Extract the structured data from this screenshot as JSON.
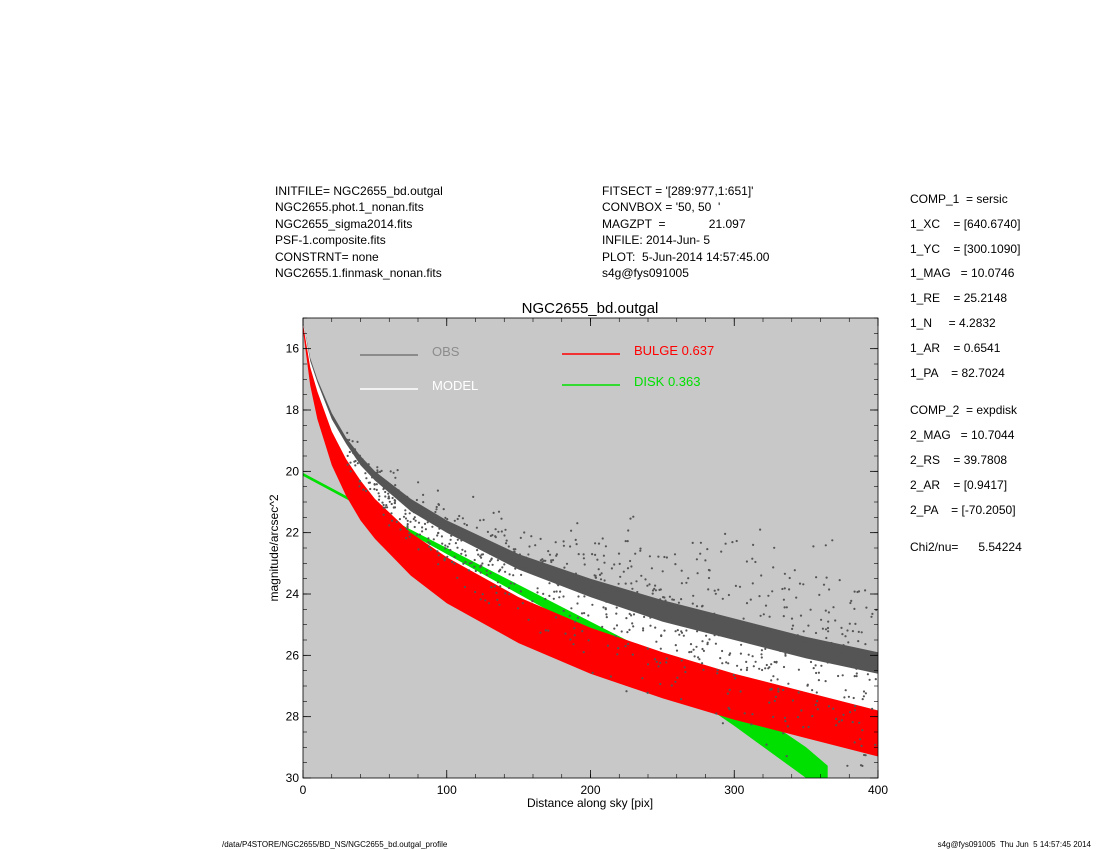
{
  "header": {
    "left_lines": [
      "INITFILE= NGC2655_bd.outgal",
      "NGC2655.phot.1_nonan.fits",
      "NGC2655_sigma2014.fits",
      "PSF-1.composite.fits",
      "CONSTRNT= none",
      "NGC2655.1.finmask_nonan.fits"
    ],
    "mid_lines": [
      "FITSECT = '[289:977,1:651]'",
      "CONVBOX = '50, 50  '",
      "MAGZPT  =             21.097",
      "INFILE: 2014-Jun- 5",
      "PLOT:  5-Jun-2014 14:57:45.00",
      "s4g@fys091005"
    ]
  },
  "params": {
    "comp1": [
      "COMP_1  = sersic",
      "1_XC    = [640.6740]",
      "1_YC    = [300.1090]",
      "1_MAG   = 10.0746",
      "1_RE    = 25.2148",
      "1_N     = 4.2832",
      "1_AR    = 0.6541",
      "1_PA    = 82.7024"
    ],
    "comp2": [
      "COMP_2  = expdisk",
      "2_MAG   = 10.7044",
      "2_RS    = 39.7808",
      "2_AR    = [0.9417]",
      "2_PA    = [-70.2050]"
    ],
    "chi2": "Chi2/nu=      5.54224"
  },
  "footer": {
    "left": "/data/P4STORE/NGC2655/BD_NS/NGC2655_bd.outgal_profile",
    "right": "s4g@fys091005  Thu Jun  5 14:57:45 2014"
  },
  "colors": {
    "plot_bg": "#c8c8c8",
    "obs": "#555555",
    "obs_legend": "#777777",
    "obs_label": "#8c8c8c",
    "model": "#ffffff",
    "bulge": "#ff0000",
    "disk": "#00e000"
  },
  "chart_data": {
    "type": "scatter",
    "title": "NGC2655_bd.outgal",
    "xlabel": "Distance along sky [pix]",
    "ylabel": "magnitude/arcsec^2",
    "xlim": [
      0,
      400
    ],
    "ylim": [
      30,
      15
    ],
    "y_inverted": true,
    "x_ticks": [
      0,
      100,
      200,
      300,
      400
    ],
    "y_ticks": [
      16,
      18,
      20,
      22,
      24,
      26,
      28,
      30
    ],
    "grid": false,
    "legend": [
      {
        "name": "OBS",
        "color": "#777777",
        "label_color": "#8c8c8c"
      },
      {
        "name": "MODEL",
        "color": "#ffffff",
        "label_color": "#ffffff"
      },
      {
        "name": "BULGE  0.637",
        "color": "#ff0000",
        "label_color": "#ff0000"
      },
      {
        "name": "DISK  0.363",
        "color": "#00e000",
        "label_color": "#00e000"
      }
    ],
    "series": [
      {
        "name": "OBS",
        "x": [
          0,
          5,
          10,
          20,
          30,
          40,
          50,
          75,
          100,
          150,
          200,
          250,
          300,
          350,
          400
        ],
        "y_upper": [
          15.1,
          16.3,
          17.0,
          18.1,
          18.9,
          19.5,
          20.0,
          20.9,
          21.6,
          22.7,
          23.5,
          24.2,
          24.8,
          25.4,
          25.9
        ],
        "y_lower": [
          15.2,
          16.6,
          17.4,
          18.7,
          19.6,
          20.3,
          20.8,
          21.8,
          22.5,
          23.6,
          24.4,
          25.1,
          25.7,
          26.3,
          26.8
        ]
      },
      {
        "name": "MODEL",
        "x": [
          0,
          5,
          10,
          20,
          30,
          40,
          50,
          75,
          100,
          150,
          200,
          250,
          300,
          350,
          400
        ],
        "y_upper": [
          15.1,
          16.4,
          17.1,
          18.3,
          19.1,
          19.8,
          20.3,
          21.3,
          22.0,
          23.2,
          24.1,
          24.9,
          25.5,
          26.1,
          26.6
        ],
        "y_lower": [
          15.2,
          16.7,
          17.6,
          18.9,
          19.9,
          20.6,
          21.2,
          22.2,
          23.0,
          24.2,
          25.1,
          25.9,
          26.6,
          27.2,
          27.8
        ]
      },
      {
        "name": "BULGE",
        "x": [
          0,
          5,
          10,
          20,
          30,
          40,
          50,
          75,
          100,
          150,
          200,
          250,
          300,
          350,
          400
        ],
        "y_upper": [
          15.2,
          16.6,
          17.4,
          18.7,
          19.6,
          20.3,
          20.9,
          22.0,
          22.8,
          24.1,
          25.1,
          25.9,
          26.6,
          27.2,
          27.8
        ],
        "y_lower": [
          15.4,
          17.2,
          18.3,
          19.8,
          20.8,
          21.6,
          22.2,
          23.4,
          24.3,
          25.6,
          26.6,
          27.4,
          28.1,
          28.7,
          29.3
        ]
      },
      {
        "name": "DISK",
        "x": [
          0,
          50,
          100,
          150,
          200,
          250,
          300,
          350,
          365
        ],
        "y_upper": [
          20.05,
          21.3,
          22.5,
          23.7,
          24.9,
          26.1,
          27.4,
          29.0,
          29.6
        ],
        "y_lower": [
          20.15,
          21.4,
          22.7,
          24.0,
          25.3,
          26.7,
          28.3,
          30.0,
          30.0
        ]
      }
    ]
  }
}
